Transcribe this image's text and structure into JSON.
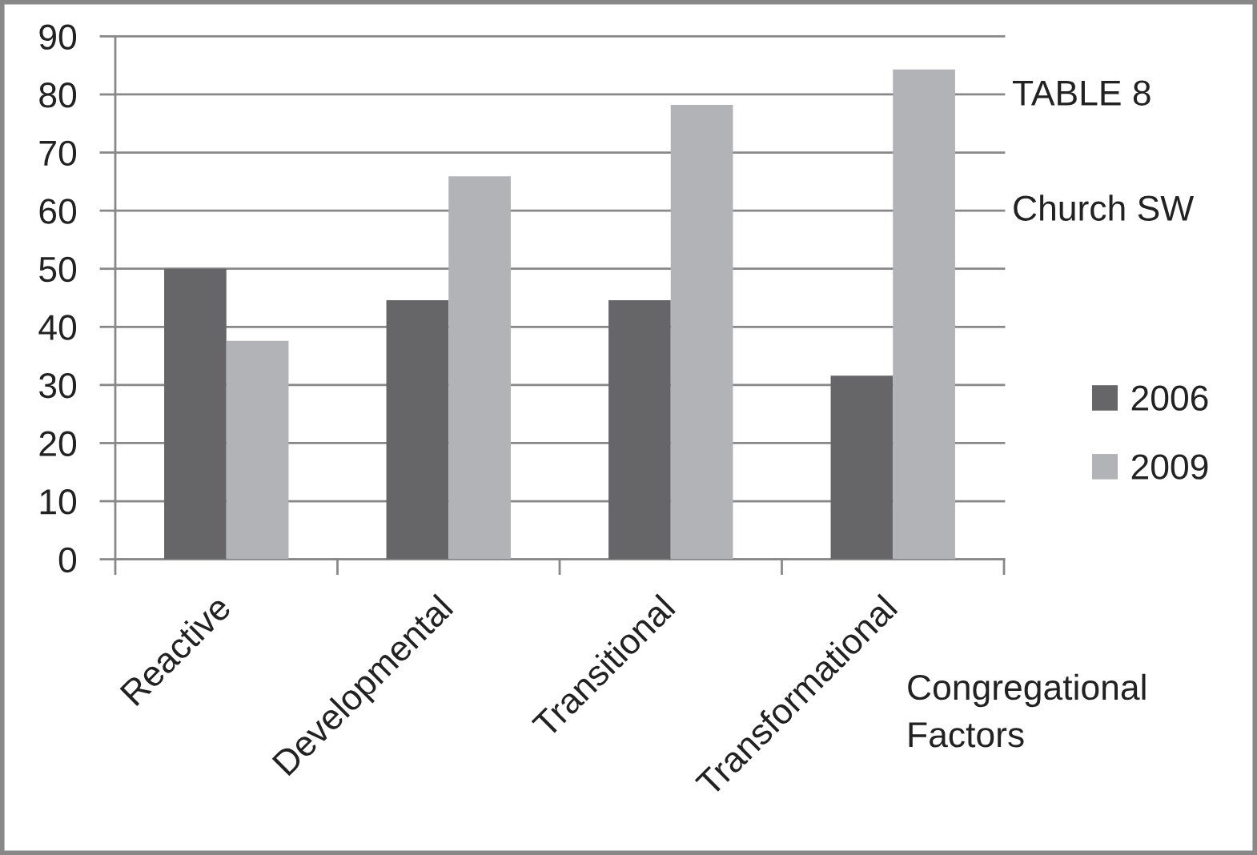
{
  "chart_data": {
    "type": "bar",
    "title": "TABLE 8",
    "subtitle": "Church SW",
    "xlabel": "Congregational Factors",
    "categories": [
      "Reactive",
      "Developmental",
      "Transitional",
      "Transformational"
    ],
    "series": [
      {
        "name": "2006",
        "color": "#666668",
        "values": [
          50,
          44.6,
          44.6,
          31.6
        ]
      },
      {
        "name": "2009",
        "color": "#b2b3b6",
        "values": [
          37.6,
          65.9,
          78.2,
          84.3
        ]
      }
    ],
    "ylim": [
      0,
      90
    ],
    "yticks": [
      0,
      10,
      20,
      30,
      40,
      50,
      60,
      70,
      80,
      90
    ],
    "grid": "y",
    "legend": "right"
  }
}
